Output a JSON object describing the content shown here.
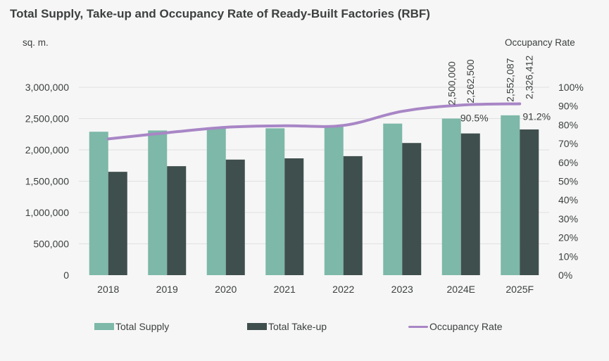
{
  "chart_data": {
    "type": "bar",
    "title": "Total Supply, Take-up and Occupancy Rate of Ready-Built Factories (RBF)",
    "ylabel_left": "sq. m.",
    "ylabel_right": "Occupancy Rate",
    "categories": [
      "2018",
      "2019",
      "2020",
      "2021",
      "2022",
      "2023",
      "2024E",
      "2025F"
    ],
    "y_left": {
      "lim": [
        0,
        3000000
      ],
      "ticks": [
        0,
        500000,
        1000000,
        1500000,
        2000000,
        2500000,
        3000000
      ],
      "tick_labels": [
        "0",
        "500,000",
        "1,000,000",
        "1,500,000",
        "2,000,000",
        "2,500,000",
        "3,000,000"
      ]
    },
    "y_right": {
      "lim": [
        0,
        100
      ],
      "ticks": [
        0,
        10,
        20,
        30,
        40,
        50,
        60,
        70,
        80,
        90,
        100
      ],
      "tick_labels": [
        "0%",
        "10%",
        "20%",
        "30%",
        "40%",
        "50%",
        "60%",
        "70%",
        "80%",
        "90%",
        "100%"
      ]
    },
    "series": [
      {
        "name": "Total Supply",
        "type": "bar",
        "color": "#7db8a8",
        "values": [
          2290000,
          2310000,
          2350000,
          2345000,
          2385000,
          2420000,
          2500000,
          2552087
        ],
        "data_labels": [
          "",
          "",
          "",
          "",
          "",
          "",
          "2,500,000",
          "2,552,087"
        ]
      },
      {
        "name": "Total Take-up",
        "type": "bar",
        "color": "#3f4f4d",
        "values": [
          1650000,
          1740000,
          1845000,
          1865000,
          1900000,
          2110000,
          2262500,
          2326412
        ],
        "data_labels": [
          "",
          "",
          "",
          "",
          "",
          "",
          "2,262,500",
          "2,326,412"
        ]
      },
      {
        "name": "Occupancy Rate",
        "type": "line",
        "axis": "right",
        "color": "#a886c6",
        "values": [
          72.5,
          75.8,
          78.7,
          79.5,
          79.7,
          87.2,
          90.5,
          91.2
        ],
        "data_labels": [
          "",
          "",
          "",
          "",
          "",
          "",
          "90.5%",
          "91.2%"
        ]
      }
    ],
    "grid": true,
    "legend": "bottom"
  },
  "colors": {
    "background": "#f6f6f6",
    "text": "#3d4040",
    "grid": "#e0e0e0"
  }
}
